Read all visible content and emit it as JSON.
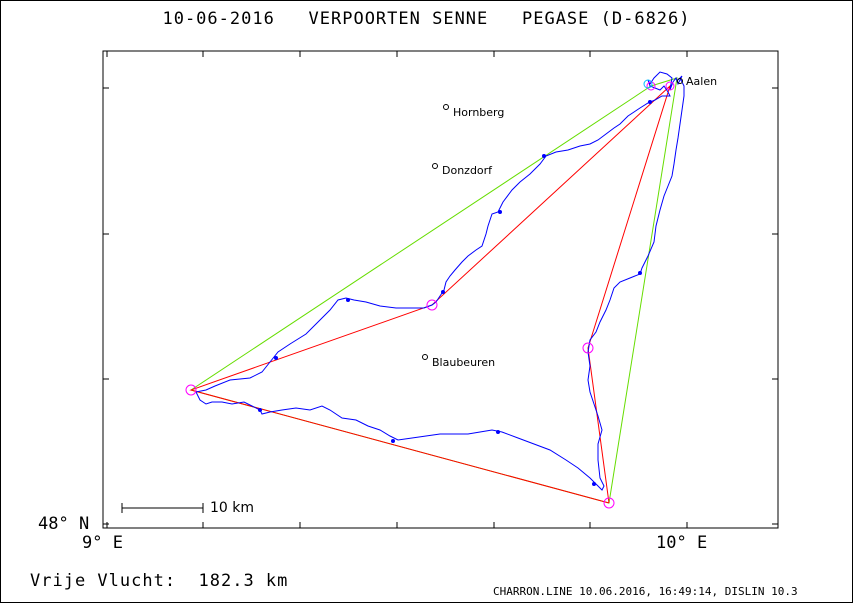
{
  "title": "10-06-2016   VERPOORTEN SENNE   PEGASE (D-6826)",
  "axes": {
    "lat_label": "48° N",
    "lon_left_label": "9° E",
    "lon_right_label": "10° E"
  },
  "scale": {
    "label": "10 km"
  },
  "towns": [
    {
      "name": "Aalen"
    },
    {
      "name": "Hornberg"
    },
    {
      "name": "Donzdorf"
    },
    {
      "name": "Blaubeuren"
    }
  ],
  "footer": {
    "distance": "Vrije Vlucht:  182.3 km",
    "credit": "CHARRON.LINE 10.06.2016, 16:49:14, DISLIN 10.3"
  },
  "colors": {
    "track": "#0000ff",
    "task_red": "#ff0000",
    "task_green": "#66dd00",
    "turnpoint": "#ff00ff",
    "start": "#00bbff"
  }
}
